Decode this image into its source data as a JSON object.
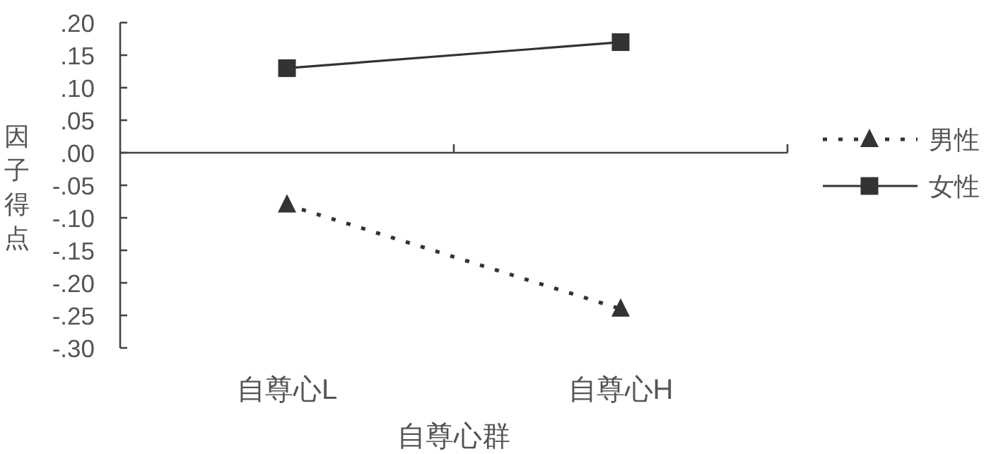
{
  "chart_data": {
    "type": "line",
    "categories": [
      "自尊心L",
      "自尊心H"
    ],
    "xlabel": "自尊心群",
    "ylabel": "因子得点",
    "ylim": [
      -0.3,
      0.2
    ],
    "yticks": [
      {
        "value": 0.2,
        "label": ".20"
      },
      {
        "value": 0.15,
        "label": ".15"
      },
      {
        "value": 0.1,
        "label": ".10"
      },
      {
        "value": 0.05,
        "label": ".05"
      },
      {
        "value": 0,
        "label": ".00"
      },
      {
        "value": -0.05,
        "label": "-.05"
      },
      {
        "value": -0.1,
        "label": "-.10"
      },
      {
        "value": -0.15,
        "label": "-.15"
      },
      {
        "value": -0.2,
        "label": "-.20"
      },
      {
        "value": -0.25,
        "label": "-.25"
      },
      {
        "value": -0.3,
        "label": "-.30"
      }
    ],
    "series": [
      {
        "name": "男性",
        "color": "#333333",
        "values": [
          -0.08,
          -0.24
        ],
        "marker": "triangle",
        "line_style": "dotted"
      },
      {
        "name": "女性",
        "color": "#333333",
        "values": [
          0.13,
          0.17
        ],
        "marker": "square",
        "line_style": "solid"
      }
    ],
    "legend": "right"
  }
}
